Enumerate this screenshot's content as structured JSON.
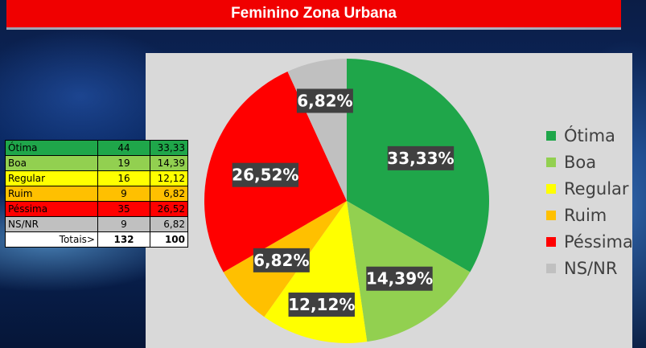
{
  "header": {
    "title": "Feminino Zona Urbana"
  },
  "table": {
    "rows": [
      {
        "label": "Ótima",
        "count": "44",
        "pct": "33,33",
        "color": "#1fa64a"
      },
      {
        "label": "Boa",
        "count": "19",
        "pct": "14,39",
        "color": "#92d050"
      },
      {
        "label": "Regular",
        "count": "16",
        "pct": "12,12",
        "color": "#ffff00"
      },
      {
        "label": "Ruim",
        "count": "9",
        "pct": "6,82",
        "color": "#ffc000"
      },
      {
        "label": "Péssima",
        "count": "35",
        "pct": "26,52",
        "color": "#ff0000"
      },
      {
        "label": "NS/NR",
        "count": "9",
        "pct": "6,82",
        "color": "#c0c0c0"
      }
    ],
    "totals": {
      "label": "Totais>",
      "count": "132",
      "pct": "100"
    }
  },
  "chart_data": {
    "type": "pie",
    "categories": [
      "Ótima",
      "Boa",
      "Regular",
      "Ruim",
      "Péssima",
      "NS/NR"
    ],
    "values": [
      33.33,
      14.39,
      12.12,
      6.82,
      26.52,
      6.82
    ],
    "labels": [
      "33,33%",
      "14,39%",
      "12,12%",
      "6,82%",
      "26,52%",
      "6,82%"
    ],
    "colors": [
      "#1fa64a",
      "#92d050",
      "#ffff00",
      "#ffc000",
      "#ff0000",
      "#c0c0c0"
    ],
    "legend_position": "right"
  }
}
